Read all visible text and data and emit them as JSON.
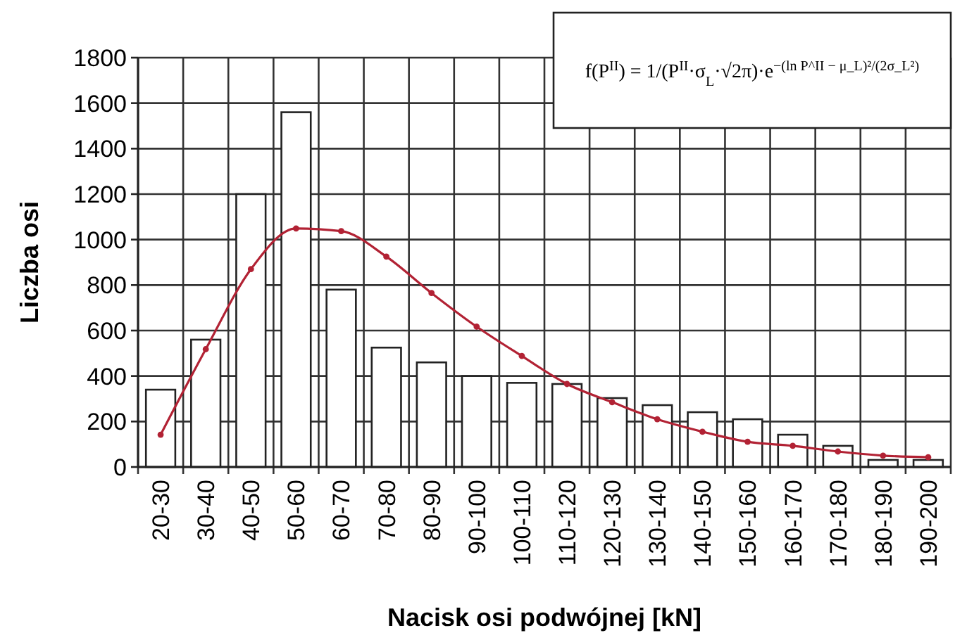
{
  "chart_data": {
    "type": "bar",
    "xlabel": "Nacisk osi podwójnej [kN]",
    "ylabel": "Liczba osi",
    "categories": [
      "20-30",
      "30-40",
      "40-50",
      "50-60",
      "60-70",
      "70-80",
      "80-90",
      "90-100",
      "100-110",
      "110-120",
      "120-130",
      "130-140",
      "140-150",
      "150-160",
      "160-170",
      "170-180",
      "180-190",
      "190-200"
    ],
    "series": [
      {
        "color": "#ffffff",
        "values": [
          340,
          560,
          1200,
          1560,
          780,
          525,
          460,
          400,
          370,
          365,
          303,
          272,
          241,
          210,
          142,
          93,
          31,
          31
        ]
      },
      {
        "type": "line",
        "color": "#b22234",
        "marker": "circle",
        "values": [
          142,
          518,
          870,
          1049,
          1037,
          925,
          765,
          617,
          488,
          365,
          285,
          210,
          155,
          111,
          93,
          68,
          50,
          43
        ]
      }
    ],
    "ylim": [
      0,
      1800
    ],
    "yticks": [
      0,
      200,
      400,
      600,
      800,
      1000,
      1200,
      1400,
      1600,
      1800
    ],
    "grid": true,
    "annotations": [
      "f(P$^{II}$) = 1/(P$^{II}$·σ$_{L}$·√2π)·e$^{−(ln P^II − μ_L)²/(2σ_L²)}$"
    ]
  }
}
